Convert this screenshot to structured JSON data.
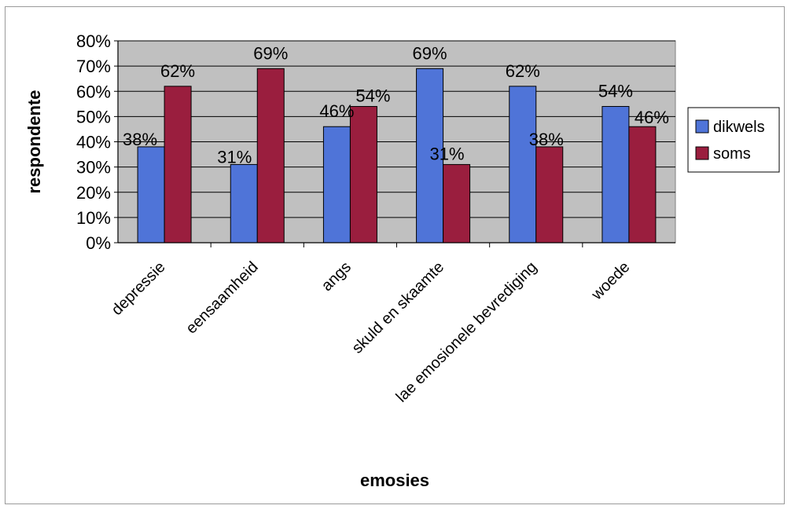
{
  "chart_data": {
    "type": "bar",
    "title": "",
    "xlabel": "emosies",
    "ylabel": "respondente",
    "categories": [
      "depressie",
      "eensaamheid",
      "angs",
      "skuld en skaamte",
      "lae emosionele bevrediging",
      "woede"
    ],
    "series": [
      {
        "name": "dikwels",
        "values": [
          38,
          31,
          46,
          69,
          62,
          54
        ],
        "labels": [
          "38%",
          "31%",
          "46%",
          "69%",
          "62%",
          "54%"
        ],
        "color": "#4f74d8"
      },
      {
        "name": "soms",
        "values": [
          62,
          69,
          54,
          31,
          38,
          46
        ],
        "labels": [
          "62%",
          "69%",
          "54%",
          "31%",
          "38%",
          "46%"
        ],
        "color": "#9a1e3e"
      }
    ],
    "ylim": [
      0,
      80
    ],
    "yticks": [
      "0%",
      "10%",
      "20%",
      "30%",
      "40%",
      "50%",
      "60%",
      "70%",
      "80%"
    ],
    "grid": true,
    "legend_position": "right",
    "plot_background": "#c0c0c0"
  }
}
